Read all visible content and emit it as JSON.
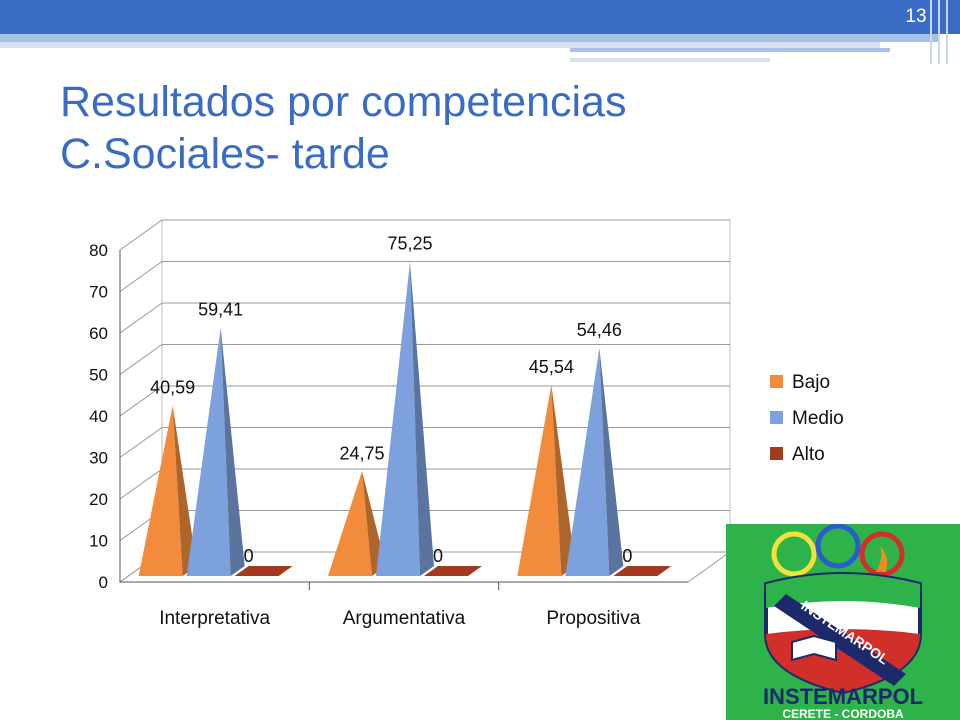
{
  "slide": {
    "number": "13",
    "title_line1": "Resultados por competencias",
    "title_line2": "C.Sociales- tarde"
  },
  "logo": {
    "name": "INSTEMARPOL",
    "place": "CERETE - CORDOBA",
    "banner": "INSTEMARPOL"
  },
  "chart_data": {
    "type": "bar",
    "style": "3d-pyramid",
    "categories": [
      "Interpretativa",
      "Argumentativa",
      "Propositiva"
    ],
    "series": [
      {
        "name": "Bajo",
        "values": [
          40.59,
          24.75,
          45.54
        ],
        "labels": [
          "40,59",
          "24,75",
          "45,54"
        ],
        "color": "#f28c3c"
      },
      {
        "name": "Medio",
        "values": [
          59.41,
          75.25,
          54.46
        ],
        "labels": [
          "59,41",
          "75,25",
          "54,46"
        ],
        "color": "#7da1dd"
      },
      {
        "name": "Alto",
        "values": [
          0,
          0,
          0
        ],
        "labels": [
          "0",
          "0",
          "0"
        ],
        "color": "#a33a1e"
      }
    ],
    "yticks": [
      "0",
      "10",
      "20",
      "30",
      "40",
      "50",
      "60",
      "70",
      "80"
    ],
    "ylim": [
      0,
      80
    ],
    "grid": true,
    "legend_position": "right"
  },
  "colors": {
    "title": "#3a6cc6",
    "topbar": "#3a6cc6",
    "logo_bg": "#2db34a"
  }
}
